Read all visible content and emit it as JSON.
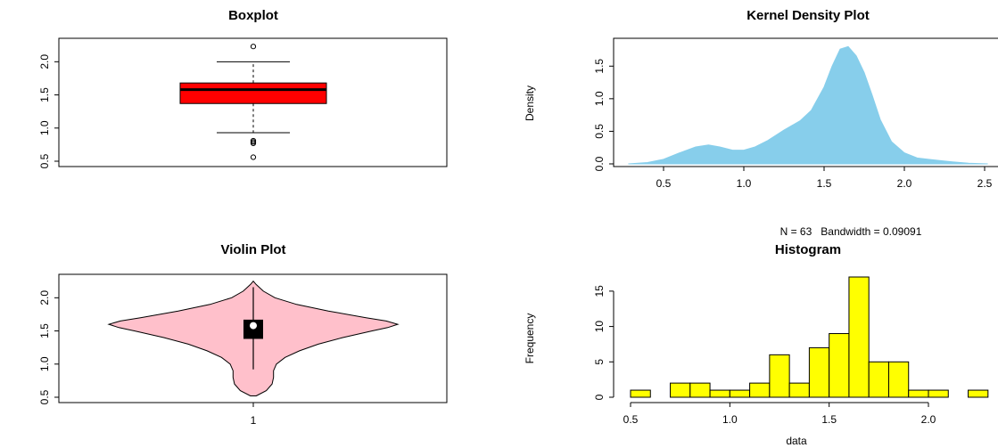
{
  "chart_data": [
    {
      "type": "boxplot",
      "title": "Boxplot",
      "ylim": [
        0.5,
        2.3
      ],
      "y_ticks": [
        "0.5",
        "1.0",
        "1.5",
        "2.0"
      ],
      "box_color": "#ff0000",
      "stats": {
        "lower_whisker": 0.93,
        "q1": 1.37,
        "median": 1.58,
        "q3": 1.68,
        "upper_whisker": 2.0
      },
      "outliers": [
        2.23,
        0.77,
        0.79,
        0.81,
        0.56
      ]
    },
    {
      "type": "area",
      "title": "Kernel Density Plot",
      "xlabel": "N = 63   Bandwidth = 0.09091",
      "ylabel": "Density",
      "xlim": [
        0.2,
        2.55
      ],
      "ylim": [
        0,
        1.9
      ],
      "x_ticks": [
        "0.5",
        "1.0",
        "1.5",
        "2.0",
        "2.5"
      ],
      "y_ticks": [
        "0.0",
        "0.5",
        "1.0",
        "1.5"
      ],
      "fill_color": "#87ceeb",
      "x": [
        0.28,
        0.4,
        0.5,
        0.6,
        0.7,
        0.78,
        0.85,
        0.93,
        1.0,
        1.07,
        1.15,
        1.25,
        1.35,
        1.42,
        1.5,
        1.55,
        1.6,
        1.65,
        1.7,
        1.75,
        1.8,
        1.85,
        1.92,
        2.0,
        2.08,
        2.15,
        2.22,
        2.3,
        2.4,
        2.52
      ],
      "y": [
        0.0,
        0.02,
        0.07,
        0.17,
        0.26,
        0.29,
        0.26,
        0.21,
        0.21,
        0.26,
        0.36,
        0.52,
        0.66,
        0.82,
        1.18,
        1.5,
        1.76,
        1.8,
        1.66,
        1.4,
        1.05,
        0.68,
        0.34,
        0.17,
        0.09,
        0.07,
        0.05,
        0.03,
        0.01,
        0.0
      ]
    },
    {
      "type": "violin",
      "title": "Violin Plot",
      "ylim": [
        0.5,
        2.3
      ],
      "y_ticks": [
        "0.5",
        "1.0",
        "1.5",
        "2.0"
      ],
      "x_ticks": [
        "1"
      ],
      "fill_color": "#ffc0cb",
      "shape_y": [
        0.52,
        0.6,
        0.7,
        0.8,
        0.9,
        1.0,
        1.1,
        1.2,
        1.3,
        1.4,
        1.5,
        1.55,
        1.6,
        1.65,
        1.7,
        1.8,
        1.9,
        2.0,
        2.1,
        2.2,
        2.25
      ],
      "shape_density": [
        0.02,
        0.09,
        0.13,
        0.14,
        0.14,
        0.16,
        0.22,
        0.32,
        0.45,
        0.62,
        0.82,
        0.93,
        1.0,
        0.92,
        0.78,
        0.52,
        0.3,
        0.15,
        0.07,
        0.02,
        0.0
      ],
      "whisker": [
        0.92,
        2.16
      ],
      "box": [
        1.38,
        1.67
      ],
      "median": 1.58
    },
    {
      "type": "bar",
      "title": "Histogram",
      "xlabel": "data",
      "ylabel": "Frequency",
      "xlim": [
        0.45,
        2.3
      ],
      "ylim": [
        0,
        17
      ],
      "x_ticks": [
        "0.5",
        "1.0",
        "1.5",
        "2.0"
      ],
      "y_ticks": [
        "0",
        "5",
        "10",
        "15"
      ],
      "bar_color": "#ffff00",
      "bin_starts": [
        0.5,
        0.6,
        0.7,
        0.8,
        0.9,
        1.0,
        1.1,
        1.2,
        1.3,
        1.4,
        1.5,
        1.6,
        1.7,
        1.8,
        1.9,
        2.0,
        2.1,
        2.2
      ],
      "bin_width": 0.1,
      "values": [
        1,
        0,
        2,
        2,
        1,
        1,
        2,
        6,
        2,
        7,
        9,
        17,
        5,
        5,
        1,
        1,
        0,
        1
      ]
    }
  ]
}
